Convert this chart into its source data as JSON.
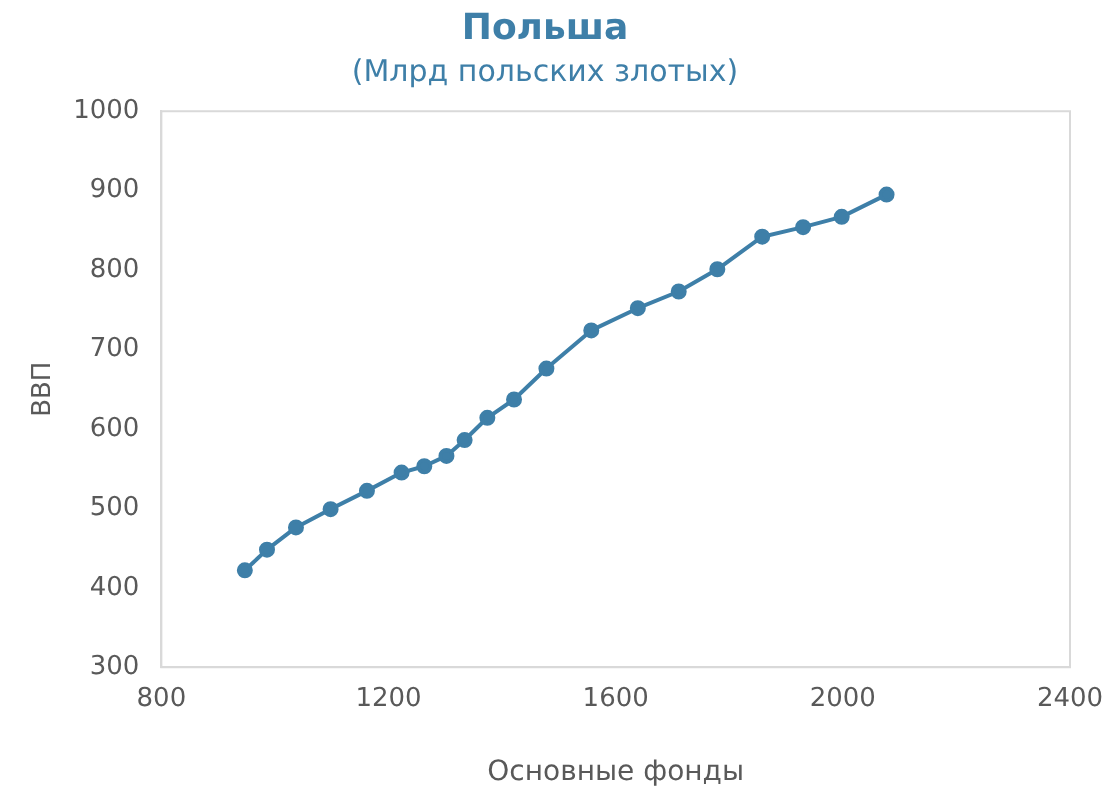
{
  "chart_data": {
    "type": "line",
    "title": "Польша",
    "subtitle": "(Млрд польских злотых)",
    "xlabel": "Основные фонды",
    "ylabel": "ВВП",
    "x": [
      947,
      986,
      1037,
      1098,
      1162,
      1223,
      1263,
      1302,
      1334,
      1374,
      1421,
      1478,
      1557,
      1639,
      1711,
      1779,
      1858,
      1930,
      1998,
      2077
    ],
    "series": [
      {
        "color": "#3e7fa8",
        "values": [
          422,
          448,
          476,
          499,
          522,
          545,
          553,
          566,
          586,
          614,
          637,
          676,
          724,
          752,
          773,
          801,
          842,
          854,
          867,
          895
        ]
      }
    ],
    "xlim": [
      800,
      2400
    ],
    "xticks": [
      800,
      1200,
      1600,
      2000,
      2400
    ],
    "ylim": [
      300,
      1000
    ],
    "yticks": [
      300,
      400,
      500,
      600,
      700,
      800,
      900,
      1000
    ],
    "grid": false,
    "legend": false,
    "marker": "circle",
    "line_style": "solid"
  }
}
